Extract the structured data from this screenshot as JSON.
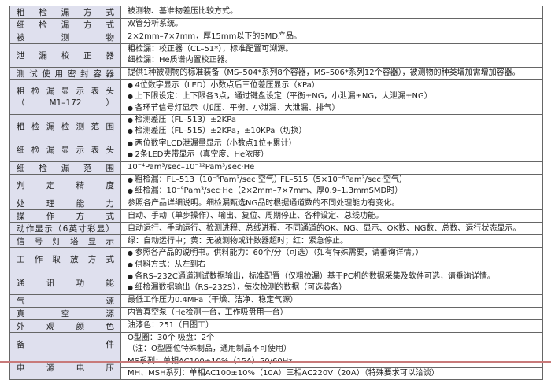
{
  "rows": [
    {
      "label": "粗检漏方式",
      "lines": [
        {
          "text": "被测物、基准物差压比较方式。",
          "bullet": false
        }
      ]
    },
    {
      "label": "细检漏方式",
      "lines": [
        {
          "text": "双管分析系统。",
          "bullet": false
        }
      ]
    },
    {
      "label": "被测物",
      "lines": [
        {
          "text": "2×2mm–7×7mm，厚15mm以下的SMD产品。",
          "bullet": false
        }
      ]
    },
    {
      "label": "泄漏校正器",
      "lines": [
        {
          "text": "粗检漏：校正器（CL–51*），标准配置可溯源。",
          "bullet": false
        },
        {
          "text": "细检漏：He质谱内置校正器。",
          "bullet": false
        }
      ]
    },
    {
      "label": "测试使用密封容器",
      "lines": [
        {
          "text": "提供1种被测物的标准装备（MS–504*系列8个容器，MS–506*系列12个容器），被测物的种类增加需增加容器。",
          "bullet": false
        }
      ]
    },
    {
      "label": "粗检漏显示表头",
      "sublabel": "（M1–172）",
      "lines": [
        {
          "text": "4位数字显示（LED）小数点后三位差压显示（KPa）",
          "bullet": true
        },
        {
          "text": "上下限设定：上下限各3点，通过键盘设定（平衡±NG，小泄漏±NG，大泄漏±NG）",
          "bullet": true
        },
        {
          "text": "各环节信号灯显示（加压、平衡、小泄漏、大泄漏、排气）",
          "bullet": true
        }
      ]
    },
    {
      "label": "粗检漏检测范围",
      "lines": [
        {
          "text": "检测差压（FL–513）±2KPa",
          "bullet": true
        },
        {
          "text": "检测差压（FL–515）±2KPa，±10KPa（切换）",
          "bullet": true
        }
      ]
    },
    {
      "label": "细检漏显示表头",
      "lines": [
        {
          "text": "两位数字LCD泄漏量显示（小数点1位+累计）",
          "bullet": true
        },
        {
          "text": "2条LED夹带显示（真空度、He浓度）",
          "bullet": true
        }
      ]
    },
    {
      "label": "细检漏范围",
      "lines": [
        {
          "text": "10⁻⁴Pam³/sec–10⁻¹²Pam³/sec·He",
          "bullet": false
        }
      ]
    },
    {
      "label": "判定精度",
      "lines": [
        {
          "text": "粗检漏：FL–513（10⁻⁵Pam³/sec·空气）·FL–515（5×10⁻⁶Pam³/sec·空气）",
          "bullet": true
        },
        {
          "text": "细检漏：10⁻⁹Pam³/sec·He（2×2mm–7×7mm、厚0.9–1.3mmSMD时）",
          "bullet": true
        }
      ]
    },
    {
      "label": "处理能力",
      "lines": [
        {
          "text": "参照各产品详细说明。细检漏甄选NG品时根据通道数的不同处理能力有变化。",
          "bullet": false
        }
      ]
    },
    {
      "label": "操作方式",
      "lines": [
        {
          "text": "自动、手动（单步操作）、输出、复位、周期停止、各种设定、总线功能。",
          "bullet": false
        }
      ]
    },
    {
      "label": "动作显示（6英寸彩显）",
      "lines": [
        {
          "text": "自动运行、手动运行、检测进程、总线进程、不同通道的OK、NG、显示、OK数、NG数、总数、运行状态显示。",
          "bullet": false
        }
      ]
    },
    {
      "label": "信号灯塔显示",
      "lines": [
        {
          "text": "绿：自动运行中；黄：无被测物或计数器超时；红：紧急停止。",
          "bullet": false
        }
      ]
    },
    {
      "label": "工作取放方式",
      "lines": [
        {
          "text": "参照各产品的说明书。供料能力：60个/分（可选）（如有特殊需要，请垂询详情。）",
          "bullet": true
        },
        {
          "text": "供料方式：从左到右",
          "bullet": true
        }
      ]
    },
    {
      "label": "通讯功能",
      "lines": [
        {
          "text": "各RS–232C通道测试数据输出，标准配置（仅粗检漏）基于PC机的数据采集及软件可选，请垂询详情。",
          "bullet": true
        },
        {
          "text": "细检漏数据输出（RS–232S），每次检测的数据（可选装备）",
          "bullet": true
        }
      ]
    },
    {
      "label": "气源",
      "lines": [
        {
          "text": "最低工作压力0.4MPa（干燥、洁净、稳定气源）",
          "bullet": false
        }
      ]
    },
    {
      "label": "真空源",
      "lines": [
        {
          "text": "内置真空泵（He检测一台，工作吸盘用一台）",
          "bullet": false
        }
      ]
    },
    {
      "label": "外观颜色",
      "lines": [
        {
          "text": "油漆色：251（日图工）",
          "bullet": false
        }
      ]
    },
    {
      "label": "备件",
      "lines": [
        {
          "text": "O型圈：30个 吸盘：2个",
          "bullet": false
        },
        {
          "text": "（注：O型圈位特殊制品，通用制品不可使用）",
          "bullet": false
        }
      ]
    },
    {
      "label": "电源电压",
      "split": true,
      "lines": [
        {
          "text": "MS系列：单相AC100±10%（15A）50/60Hz",
          "bullet": false
        },
        {
          "text": "MH、MSH系列：单相AC100±10%（10A）三相AC220V（20A）（特殊要求可以洽谈）",
          "bullet": false
        }
      ]
    }
  ],
  "colors": {
    "label_bg": "#dfe0ee",
    "footer_line": "#c87a7a"
  }
}
